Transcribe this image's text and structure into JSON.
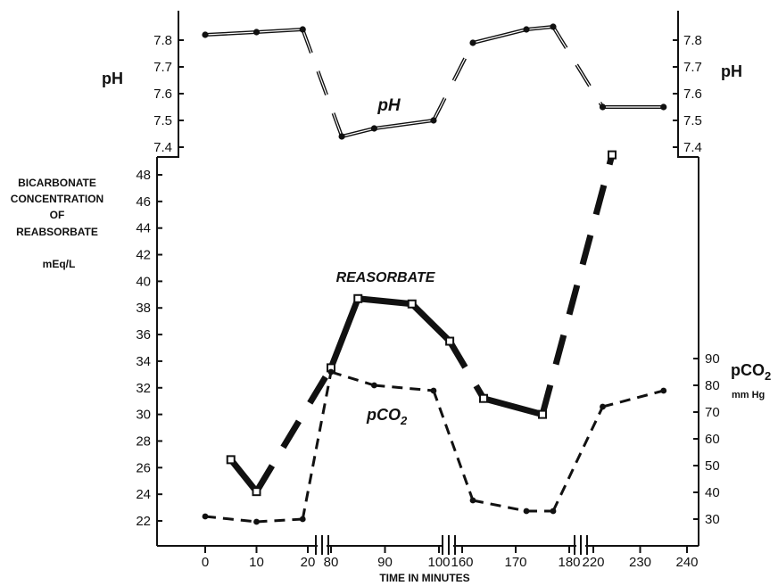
{
  "chart_data": {
    "type": "line",
    "xlabel": "TIME IN MINUTES",
    "x_segments": [
      {
        "ticks": [
          0,
          10,
          20
        ],
        "labels": [
          "0",
          "10",
          "20"
        ]
      },
      {
        "ticks": [
          80,
          90,
          100
        ],
        "labels": [
          "80",
          "90",
          "100"
        ]
      },
      {
        "ticks": [
          160,
          170,
          180
        ],
        "labels": [
          "160",
          "170",
          "180"
        ]
      },
      {
        "ticks": [
          220,
          230,
          240
        ],
        "labels": [
          "220",
          "230",
          "240"
        ]
      }
    ],
    "axes": {
      "ph": {
        "label": "pH",
        "ticks": [
          7.4,
          7.5,
          7.6,
          7.7,
          7.8
        ],
        "tick_labels": [
          "7.4",
          "7.5",
          "7.6",
          "7.7",
          "7.8"
        ],
        "ylim": [
          7.35,
          7.87
        ]
      },
      "bicarbonate": {
        "label_lines": [
          "BICARBONATE",
          "CONCENTRATION",
          "OF",
          "REABSORBATE"
        ],
        "unit": "mEq/L",
        "ticks": [
          22,
          24,
          26,
          28,
          30,
          32,
          34,
          36,
          38,
          40,
          42,
          44,
          46,
          48
        ],
        "tick_labels": [
          "22",
          "24",
          "26",
          "28",
          "30",
          "32",
          "34",
          "36",
          "38",
          "40",
          "42",
          "44",
          "46",
          "48"
        ],
        "ylim": [
          20,
          49
        ]
      },
      "pco2": {
        "label": "pCO2",
        "unit": "mm Hg",
        "ticks": [
          30,
          40,
          50,
          60,
          70,
          80,
          90
        ],
        "tick_labels": [
          "30",
          "40",
          "50",
          "60",
          "70",
          "80",
          "90"
        ],
        "ylim": [
          20,
          95
        ]
      }
    },
    "series": [
      {
        "name": "pH",
        "axis": "ph",
        "style": "double",
        "points": [
          [
            0,
            7.82
          ],
          [
            10,
            7.83
          ],
          [
            19,
            7.84
          ],
          [
            82,
            7.44
          ],
          [
            88,
            7.47
          ],
          [
            99,
            7.5
          ],
          [
            162,
            7.79
          ],
          [
            172,
            7.84
          ],
          [
            177,
            7.85
          ],
          [
            222,
            7.55
          ],
          [
            235,
            7.55
          ]
        ]
      },
      {
        "name": "REASORBATE",
        "axis": "bicarbonate",
        "style": "thick",
        "points": [
          [
            5,
            26.6
          ],
          [
            10,
            24.2
          ],
          [
            80,
            33.5
          ],
          [
            85,
            38.7
          ],
          [
            95,
            38.3
          ],
          [
            102,
            35.5
          ],
          [
            164,
            31.2
          ],
          [
            175,
            30.0
          ],
          [
            224,
            49.5
          ]
        ]
      },
      {
        "name": "pCO2",
        "axis": "pco2",
        "style": "dashed",
        "points": [
          [
            0,
            31
          ],
          [
            10,
            29
          ],
          [
            19,
            30
          ],
          [
            80,
            85
          ],
          [
            88,
            80
          ],
          [
            99,
            78
          ],
          [
            162,
            37
          ],
          [
            172,
            33
          ],
          [
            177,
            33
          ],
          [
            222,
            72
          ],
          [
            235,
            78
          ]
        ]
      }
    ],
    "grid": false
  }
}
